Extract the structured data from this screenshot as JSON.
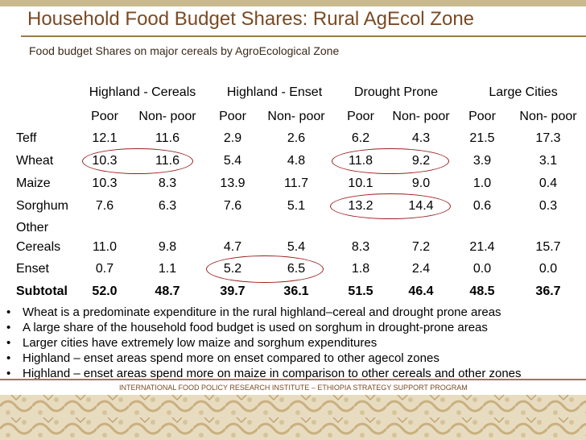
{
  "title": "Household Food Budget Shares: Rural AgEcol Zone",
  "subtitle": "Food budget Shares on major cereals  by AgroEcological Zone",
  "zones": [
    "Highland - Cereals",
    "Highland - Enset",
    "Drought Prone",
    "Large Cities"
  ],
  "subheaders": [
    "Poor",
    "Non- poor",
    "Poor",
    "Non- poor",
    "Poor",
    "Non- poor",
    "Poor",
    "Non- poor"
  ],
  "rows": [
    {
      "label": "Teff",
      "values": [
        "12.1",
        "11.6",
        "2.9",
        "2.6",
        "6.2",
        "4.3",
        "21.5",
        "17.3"
      ]
    },
    {
      "label": "Wheat",
      "values": [
        "10.3",
        "11.6",
        "5.4",
        "4.8",
        "11.8",
        "9.2",
        "3.9",
        "3.1"
      ]
    },
    {
      "label": "Maize",
      "values": [
        "10.3",
        "8.3",
        "13.9",
        "11.7",
        "10.1",
        "9.0",
        "1.0",
        "0.4"
      ]
    },
    {
      "label": "Sorghum",
      "values": [
        "7.6",
        "6.3",
        "7.6",
        "5.1",
        "13.2",
        "14.4",
        "0.6",
        "0.3"
      ]
    },
    {
      "label_line1": "Other",
      "label": "Cereals",
      "values": [
        "11.0",
        "9.8",
        "4.7",
        "5.4",
        "8.3",
        "7.2",
        "21.4",
        "15.7"
      ]
    },
    {
      "label": "Enset",
      "values": [
        "0.7",
        "1.1",
        "5.2",
        "6.5",
        "1.8",
        "2.4",
        "0.0",
        "0.0"
      ]
    },
    {
      "label": "Subtotal",
      "values": [
        "52.0",
        "48.7",
        "39.7",
        "36.1",
        "51.5",
        "46.4",
        "48.5",
        "36.7"
      ]
    }
  ],
  "bullets": [
    "Wheat is a predominate expenditure in the rural highland–cereal and drought prone areas",
    "A large share of the household food budget is used on sorghum in drought-prone areas",
    "Larger cities have extremely low maize and sorghum expenditures",
    "Highland – enset areas spend more on enset compared to other agecol zones",
    "Highland – enset areas spend more on maize in comparison to other cereals and other zones"
  ],
  "bullet_symbol": "•",
  "footer": "INTERNATIONAL FOOD POLICY RESEARCH INSTITUTE – ETHIOPIA STRATEGY SUPPORT PROGRAM",
  "colors": {
    "title": "#7a4a24",
    "circle": "#9a1f1f",
    "rule": "#9b7a4a"
  }
}
